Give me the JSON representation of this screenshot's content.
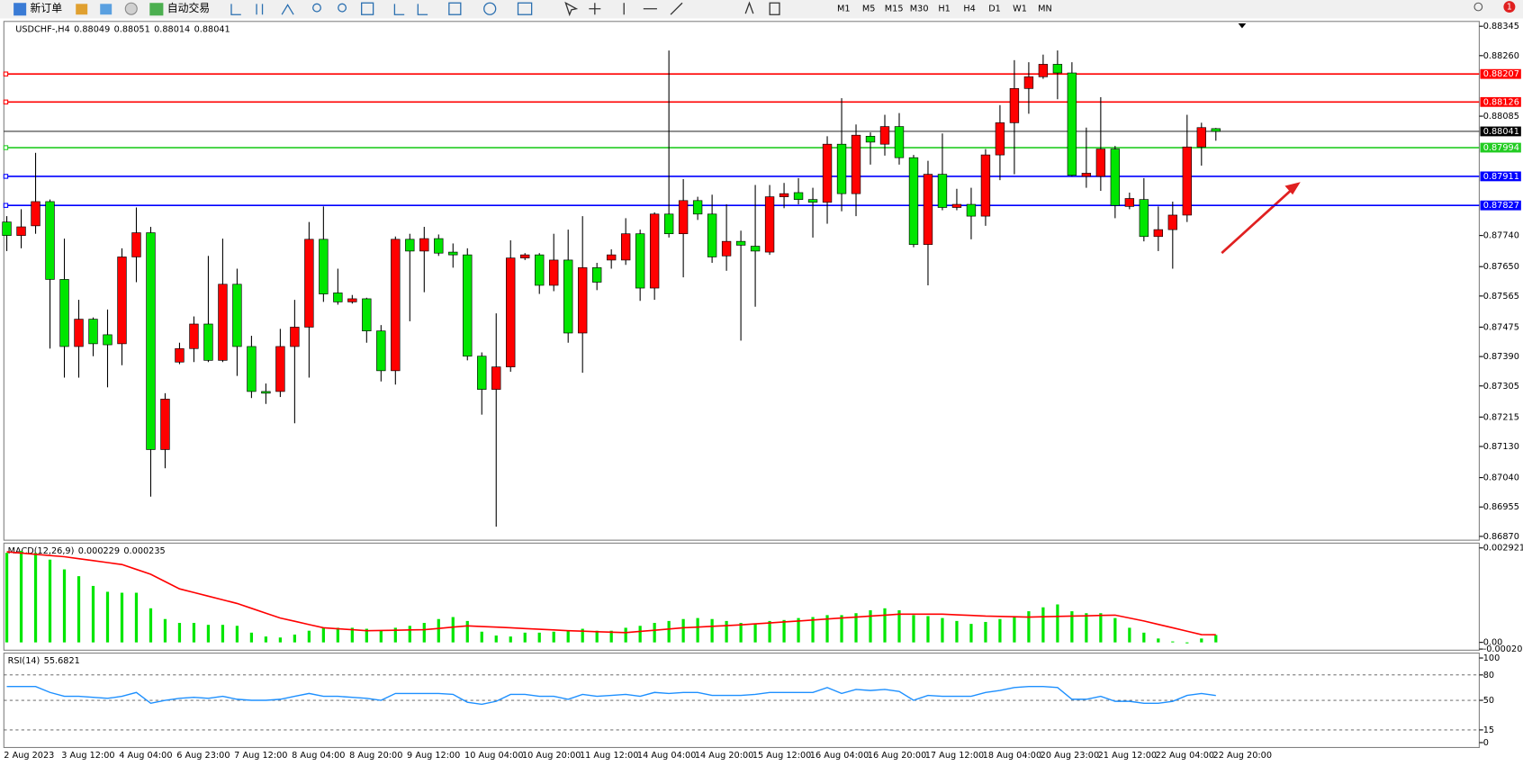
{
  "toolbar": {
    "new_order": "新订单",
    "auto_trading": "自动交易",
    "timeframes": [
      "M1",
      "M5",
      "M15",
      "M30",
      "H1",
      "H4",
      "D1",
      "W1",
      "MN"
    ],
    "notifications": 1
  },
  "chart_data": [
    {
      "type": "candlestick",
      "symbol": "USDCHF-,H4",
      "categories": [
        "2 Aug 2023",
        null,
        null,
        null,
        "3 Aug 12:00",
        null,
        null,
        null,
        "4 Aug 04:00",
        null,
        null,
        null,
        "6 Aug 23:00",
        null,
        null,
        null,
        "7 Aug 12:00",
        null,
        null,
        null,
        "8 Aug 04:00",
        null,
        null,
        null,
        "8 Aug 20:00",
        null,
        null,
        null,
        "9 Aug 12:00",
        null,
        null,
        null,
        "10 Aug 04:00",
        null,
        null,
        null,
        "10 Aug 20:00",
        null,
        null,
        null,
        "11 Aug 12:00",
        null,
        null,
        null,
        "14 Aug 04:00",
        null,
        null,
        null,
        "14 Aug 20:00",
        null,
        null,
        null,
        "15 Aug 12:00",
        null,
        null,
        null,
        "16 Aug 04:00",
        null,
        null,
        null,
        "16 Aug 20:00",
        null,
        null,
        null,
        "17 Aug 12:00",
        null,
        null,
        null,
        "18 Aug 04:00",
        null,
        null,
        null,
        "20 Aug 23:00",
        null,
        null,
        null,
        "21 Aug 12:00",
        null,
        null,
        null,
        "22 Aug 04:00",
        null,
        null,
        null,
        "22 Aug 20:00"
      ],
      "open": [
        0.87779,
        0.8774,
        0.87768,
        0.87838,
        0.87613,
        0.87419,
        0.87498,
        0.87453,
        0.87427,
        0.87678,
        0.87748,
        0.87121,
        0.87374,
        0.87413,
        0.87484,
        0.87379,
        0.87599,
        0.87419,
        0.87289,
        0.87289,
        0.87419,
        0.87475,
        0.87729,
        0.87574,
        0.87548,
        0.87557,
        0.87464,
        0.87349,
        0.87729,
        0.87695,
        0.87731,
        0.87692,
        0.87684,
        0.87391,
        0.87295,
        0.8736,
        0.87675,
        0.87684,
        0.87596,
        0.87669,
        0.87458,
        0.87647,
        0.87669,
        0.87669,
        0.87745,
        0.87588,
        0.87802,
        0.87745,
        0.87841,
        0.87802,
        0.87681,
        0.87723,
        0.87709,
        0.87692,
        0.87852,
        0.87864,
        0.87844,
        0.87836,
        0.88004,
        0.87861,
        0.88027,
        0.88004,
        0.88055,
        0.87965,
        0.87714,
        0.87917,
        0.87821,
        0.8783,
        0.87796,
        0.87973,
        0.88066,
        0.88165,
        0.88199,
        0.88235,
        0.8821,
        0.87911,
        0.87911,
        0.8799,
        0.87824,
        0.87844,
        0.87737,
        0.87757,
        0.87799,
        0.87996,
        0.88049
      ],
      "high": [
        0.87796,
        0.87816,
        0.87979,
        0.87844,
        0.87731,
        0.87554,
        0.87503,
        0.87526,
        0.87703,
        0.87821,
        0.87765,
        0.87284,
        0.8743,
        0.87506,
        0.87681,
        0.87731,
        0.87644,
        0.8745,
        0.87312,
        0.8747,
        0.87554,
        0.87779,
        0.87824,
        0.87644,
        0.87568,
        0.8756,
        0.87481,
        0.87737,
        0.87745,
        0.87765,
        0.87743,
        0.87717,
        0.87703,
        0.87402,
        0.87515,
        0.87726,
        0.87689,
        0.87689,
        0.87745,
        0.87757,
        0.87796,
        0.87661,
        0.877,
        0.8779,
        0.87757,
        0.87807,
        0.88275,
        0.87903,
        0.87852,
        0.87858,
        0.8783,
        0.87754,
        0.87886,
        0.87886,
        0.87892,
        0.87906,
        0.87878,
        0.88027,
        0.88137,
        0.88061,
        0.88038,
        0.88089,
        0.88094,
        0.87973,
        0.87956,
        0.88035,
        0.87875,
        0.87878,
        0.8799,
        0.88117,
        0.88247,
        0.88241,
        0.88263,
        0.88275,
        0.88241,
        0.88052,
        0.8814,
        0.87999,
        0.87864,
        0.87906,
        0.87824,
        0.87838,
        0.88089,
        0.88066,
        0.88051
      ],
      "low": [
        0.87695,
        0.87703,
        0.87745,
        0.87413,
        0.87329,
        0.87329,
        0.87391,
        0.87301,
        0.87365,
        0.87605,
        0.86985,
        0.87067,
        0.87368,
        0.87374,
        0.87374,
        0.87374,
        0.87334,
        0.8727,
        0.87253,
        0.87273,
        0.87197,
        0.87329,
        0.87548,
        0.8754,
        0.87543,
        0.8743,
        0.87318,
        0.87309,
        0.87492,
        0.87576,
        0.87681,
        0.87647,
        0.87379,
        0.87222,
        0.86898,
        0.87346,
        0.87669,
        0.87571,
        0.87579,
        0.8743,
        0.87343,
        0.87582,
        0.87644,
        0.87655,
        0.87551,
        0.87554,
        0.87734,
        0.87619,
        0.87785,
        0.87661,
        0.87638,
        0.87436,
        0.87534,
        0.87684,
        0.87819,
        0.8783,
        0.87734,
        0.87774,
        0.8781,
        0.87796,
        0.87945,
        0.87971,
        0.87945,
        0.87706,
        0.87596,
        0.87813,
        0.87813,
        0.87729,
        0.87768,
        0.879,
        0.87917,
        0.88092,
        0.88193,
        0.88134,
        0.87911,
        0.87878,
        0.87869,
        0.8779,
        0.87816,
        0.87723,
        0.87695,
        0.87644,
        0.87779,
        0.87942,
        0.88014
      ],
      "close": [
        0.8774,
        0.87765,
        0.87838,
        0.87613,
        0.87419,
        0.87498,
        0.87427,
        0.87424,
        0.87678,
        0.87748,
        0.87121,
        0.87267,
        0.87413,
        0.87484,
        0.87379,
        0.87599,
        0.87419,
        0.87289,
        0.87284,
        0.87419,
        0.87475,
        0.87729,
        0.87571,
        0.87548,
        0.87557,
        0.87464,
        0.87349,
        0.87729,
        0.87695,
        0.87731,
        0.87689,
        0.87684,
        0.87391,
        0.87295,
        0.8736,
        0.87675,
        0.87684,
        0.87596,
        0.87669,
        0.87458,
        0.87647,
        0.87605,
        0.87684,
        0.87745,
        0.87588,
        0.87802,
        0.87745,
        0.87841,
        0.87802,
        0.87678,
        0.87723,
        0.87712,
        0.87695,
        0.87852,
        0.87861,
        0.87844,
        0.87836,
        0.88004,
        0.87861,
        0.8803,
        0.8801,
        0.88055,
        0.87965,
        0.87714,
        0.87917,
        0.87821,
        0.8783,
        0.87796,
        0.87973,
        0.88066,
        0.88165,
        0.88199,
        0.88235,
        0.8821,
        0.87914,
        0.8792,
        0.8799,
        0.87827,
        0.87847,
        0.87737,
        0.87757,
        0.87799,
        0.87996,
        0.88052,
        0.88041
      ],
      "up_color": "#ff0000",
      "down_color": "#00e600",
      "bid_color": "#000000",
      "ylim": [
        0.86859,
        0.88359
      ],
      "yticks": [
        0.88345,
        {
          "value": 0.8826,
          "label": "0.88260"
        },
        0.88085,
        {
          "value": 0.8774,
          "label": "0.87740"
        },
        {
          "value": 0.8765,
          "label": "0.87650"
        },
        0.87565,
        0.87475,
        {
          "value": 0.8739,
          "label": "0.87390"
        },
        0.87305,
        0.87215,
        {
          "value": 0.8713,
          "label": "0.87130"
        },
        {
          "value": 0.8704,
          "label": "0.87040"
        },
        0.86955,
        {
          "value": 0.8687,
          "label": "0.86870"
        }
      ],
      "levels": [
        {
          "value": 0.88207,
          "color": "#ff0000"
        },
        {
          "value": 0.88126,
          "color": "#ff0000"
        },
        {
          "value": 0.87994,
          "color": "#22cc22"
        },
        {
          "value": 0.87911,
          "color": "#0000ff"
        },
        {
          "value": 0.87827,
          "color": "#0000ff"
        }
      ]
    },
    {
      "type": "macd",
      "title": "MACD(12,26,9)",
      "histogram": {
        "color": "#00e600",
        "values": [
          0.002769,
          0.002829,
          0.002769,
          0.002559,
          0.002258,
          0.002047,
          0.001746,
          0.001565,
          0.001535,
          0.001535,
          0.001054,
          0.000722,
          0.000602,
          0.000602,
          0.000542,
          0.000542,
          0.000512,
          0.000301,
          0.000181,
          0.000151,
          0.000241,
          0.000361,
          0.000452,
          0.000452,
          0.000452,
          0.000421,
          0.000361,
          0.000452,
          0.000512,
          0.000602,
          0.000722,
          0.000783,
          0.000662,
          0.000331,
          0.000211,
          0.000181,
          0.000301,
          0.000301,
          0.000331,
          0.000361,
          0.000421,
          0.000361,
          0.000361,
          0.000452,
          0.000512,
          0.000602,
          0.000662,
          0.000722,
          0.000753,
          0.000722,
          0.000662,
          0.000602,
          0.000572,
          0.000662,
          0.000692,
          0.000753,
          0.000783,
          0.000843,
          0.000843,
          0.000903,
          0.000993,
          0.001054,
          0.000993,
          0.000843,
          0.000813,
          0.000753,
          0.000662,
          0.000572,
          0.000632,
          0.000722,
          0.000813,
          0.000963,
          0.001084,
          0.001174,
          0.000963,
          0.000903,
          0.000903,
          0.000753,
          0.000452,
          0.000301,
          0.00012,
          3e-05,
          -3e-05,
          0.00012,
          0.000229
        ]
      },
      "signal": {
        "color": "#ff0000",
        "values": [
          0.002799,
          0.002762,
          0.002724,
          0.002686,
          0.002649,
          0.002589,
          0.002528,
          0.002468,
          0.002408,
          0.002258,
          0.002107,
          0.001881,
          0.001656,
          0.001543,
          0.00143,
          0.001317,
          0.001204,
          0.001054,
          0.000903,
          0.000753,
          0.000653,
          0.000551,
          0.000452,
          0.000421,
          0.000391,
          0.000361,
          0.000369,
          0.000376,
          0.000384,
          0.000391,
          0.00043,
          0.000473,
          0.000512,
          0.000491,
          0.000473,
          0.000452,
          0.000429,
          0.000406,
          0.000384,
          0.000361,
          0.000346,
          0.000331,
          0.000316,
          0.000301,
          0.000339,
          0.000376,
          0.000414,
          0.000452,
          0.000474,
          0.000497,
          0.000519,
          0.000542,
          0.000572,
          0.000602,
          0.000632,
          0.000662,
          0.000692,
          0.000722,
          0.000753,
          0.000783,
          0.000813,
          0.000843,
          0.000873,
          0.000873,
          0.000873,
          0.000873,
          0.000852,
          0.000834,
          0.000813,
          0.000804,
          0.000792,
          0.000783,
          0.000792,
          0.000804,
          0.000813,
          0.000822,
          0.000834,
          0.000843,
          0.000753,
          0.000662,
          0.000557,
          0.000452,
          0.000346,
          0.000241,
          0.000235
        ]
      },
      "ylim": [
        -0.000241,
        0.00307
      ],
      "yticks": [
        0.002921,
        {
          "value": 0,
          "label": "0.00"
        },
        -0.000206
      ]
    },
    {
      "type": "rsi",
      "title": "RSI(14)",
      "color": "#1e90ff",
      "values": [
        66.3,
        66.3,
        66.3,
        59.3,
        54.7,
        54.7,
        53.5,
        52.3,
        54.7,
        59.3,
        46.5,
        50.0,
        52.3,
        53.5,
        52.3,
        54.7,
        51.2,
        50.0,
        50.0,
        51.2,
        54.7,
        58.1,
        54.7,
        54.7,
        53.5,
        52.3,
        50.0,
        58.1,
        58.1,
        58.1,
        58.1,
        57.0,
        47.7,
        45.3,
        48.8,
        57.0,
        57.0,
        54.7,
        54.7,
        51.2,
        57.0,
        54.7,
        55.8,
        57.0,
        54.7,
        59.3,
        58.1,
        59.3,
        59.3,
        55.8,
        55.8,
        55.8,
        57.0,
        59.3,
        59.3,
        59.3,
        59.3,
        65.1,
        58.1,
        62.8,
        61.6,
        62.8,
        60.5,
        50.0,
        55.8,
        54.7,
        54.7,
        54.7,
        59.3,
        61.6,
        65.1,
        66.3,
        66.3,
        65.1,
        51.2,
        51.2,
        54.7,
        48.8,
        48.8,
        46.5,
        46.5,
        48.8,
        55.8,
        58.1,
        55.6821
      ],
      "ylim": [
        -5.8,
        105.8
      ],
      "yticks": [
        100,
        80,
        50,
        15,
        0
      ],
      "levels": [
        80,
        50,
        15
      ]
    }
  ]
}
